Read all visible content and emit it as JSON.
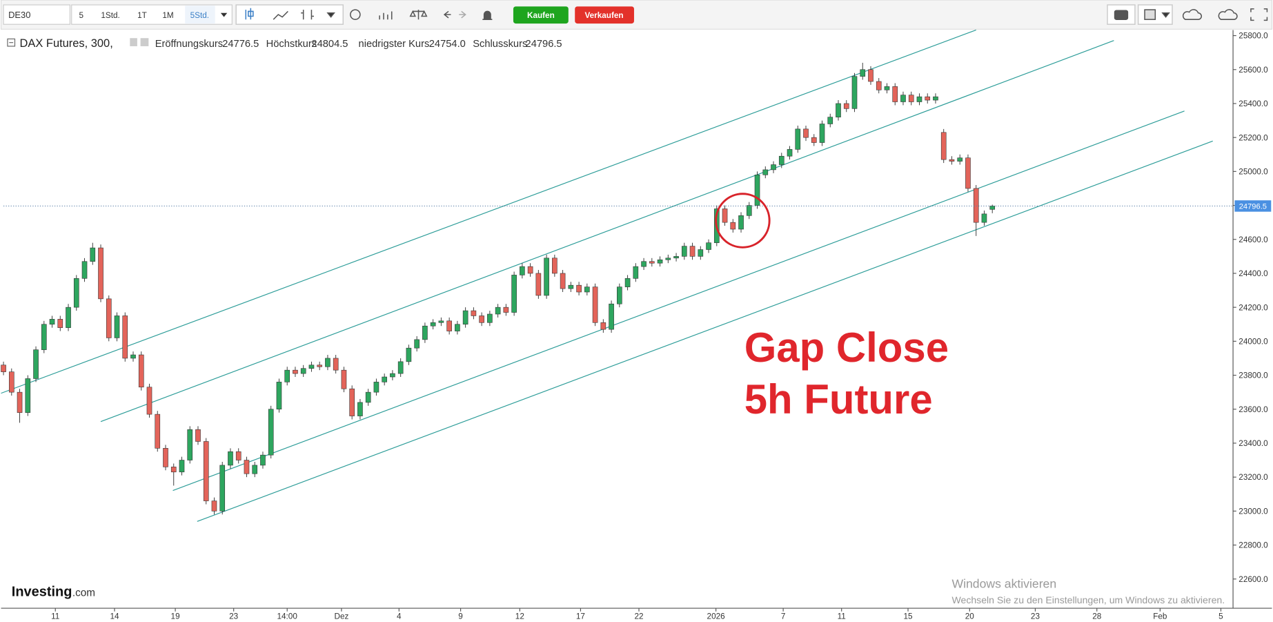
{
  "ui": {
    "symbol": "DE30",
    "intervals": [
      "5",
      "1Std.",
      "1T",
      "1M",
      "5Std."
    ],
    "buy": "Kaufen",
    "sell": "Verkaufen",
    "logo": "Investing",
    "logo_suffix": ".com",
    "watermark_title": "Windows aktivieren",
    "watermark_text": "Wechseln Sie zu den Einstellungen, um Windows zu aktivieren."
  },
  "chart_data": {
    "type": "candlestick",
    "title": "DAX Futures, 300,",
    "ohlc_header": [
      {
        "name": "Eröffnungskurs",
        "value": 24776.5
      },
      {
        "name": "Höchstkurs",
        "value": 24804.5
      },
      {
        "name": "niedrigster Kurs",
        "value": 24754,
        "label": "24754.0"
      },
      {
        "name": "Schlusskurs",
        "value": 24796.5
      }
    ],
    "annotations": [
      "Gap Close",
      "5h Future"
    ],
    "up_color": "#2ea65f",
    "down_color": "#e3645a",
    "trend_color": "#2b9c98",
    "x": [
      0,
      1,
      2,
      3,
      4,
      5,
      6,
      7,
      8,
      9,
      10,
      11,
      12,
      13,
      14,
      15,
      16,
      17,
      18,
      19,
      20,
      21,
      22,
      23,
      24,
      25,
      26,
      27,
      28,
      29,
      30,
      31,
      32,
      33,
      34,
      35,
      36,
      37,
      38,
      39,
      40,
      41,
      42,
      43,
      44,
      45,
      46,
      47,
      48,
      49,
      50,
      51,
      52,
      53,
      54,
      55,
      56,
      57,
      58,
      59,
      60,
      61,
      62,
      63,
      64,
      65,
      66,
      67,
      68,
      69,
      70,
      71,
      72,
      73,
      74,
      75,
      76,
      77,
      78,
      79,
      80,
      81,
      82,
      83,
      84,
      85,
      86,
      87,
      88,
      89,
      90,
      91,
      92,
      93,
      94,
      95,
      96,
      97,
      98,
      99,
      100,
      101,
      102,
      103,
      104,
      105,
      106,
      107,
      108,
      109,
      110,
      111,
      112,
      113,
      114,
      115,
      116,
      117,
      118,
      119,
      120,
      121,
      122
    ],
    "open": [
      23860,
      23820,
      23700,
      23580,
      23780,
      23950,
      24100,
      24130,
      24080,
      24200,
      24370,
      24470,
      24550,
      24250,
      24020,
      24150,
      23900,
      23920,
      23730,
      23570,
      23370,
      23260,
      23230,
      23300,
      23480,
      23410,
      23060,
      23000,
      23270,
      23350,
      23300,
      23220,
      23270,
      23330,
      23600,
      23760,
      23830,
      23810,
      23840,
      23860,
      23850,
      23900,
      23830,
      23720,
      23560,
      23640,
      23700,
      23760,
      23790,
      23810,
      23880,
      23960,
      24010,
      24090,
      24110,
      24120,
      24060,
      24100,
      24180,
      24150,
      24110,
      24160,
      24200,
      24170,
      24390,
      24440,
      24400,
      24270,
      24490,
      24400,
      24310,
      24330,
      24290,
      24320,
      24110,
      24070,
      24220,
      24320,
      24370,
      24440,
      24470,
      24460,
      24480,
      24490,
      24500,
      24560,
      24500,
      24540,
      24580,
      24780,
      24700,
      24660,
      24740,
      24800,
      24980,
      25010,
      25040,
      25090,
      25130,
      25250,
      25200,
      25170,
      25280,
      25320,
      25400,
      25370,
      25560,
      25600,
      25530,
      25480,
      25500,
      25410,
      25450,
      25410,
      25440,
      25420,
      25230,
      25070,
      25060,
      25080,
      24900,
      24700,
      24776.5
    ],
    "high": [
      23880,
      23840,
      23720,
      23800,
      23970,
      24120,
      24150,
      24150,
      24220,
      24390,
      24490,
      24580,
      24570,
      24270,
      24170,
      24170,
      23940,
      23940,
      23750,
      23590,
      23390,
      23280,
      23320,
      23500,
      23500,
      23430,
      23080,
      23290,
      23370,
      23370,
      23320,
      23290,
      23350,
      23620,
      23780,
      23850,
      23850,
      23860,
      23880,
      23880,
      23920,
      23920,
      23850,
      23740,
      23660,
      23720,
      23780,
      23810,
      23830,
      23900,
      23980,
      24030,
      24110,
      24130,
      24140,
      24140,
      24120,
      24200,
      24200,
      24170,
      24180,
      24220,
      24220,
      24410,
      24460,
      24460,
      24420,
      24510,
      24510,
      24420,
      24350,
      24350,
      24340,
      24340,
      24130,
      24240,
      24340,
      24390,
      24460,
      24490,
      24490,
      24500,
      24510,
      24520,
      24580,
      24580,
      24560,
      24600,
      24800,
      24800,
      24720,
      24760,
      24820,
      25000,
      25030,
      25060,
      25110,
      25150,
      25270,
      25270,
      25220,
      25300,
      25340,
      25420,
      25420,
      25580,
      25640,
      25620,
      25550,
      25520,
      25520,
      25470,
      25470,
      25460,
      25460,
      25460,
      25250,
      25090,
      25100,
      25100,
      24920,
      24770,
      24804.5
    ],
    "low": [
      23800,
      23680,
      23520,
      23560,
      23760,
      23930,
      24080,
      24060,
      24060,
      24180,
      24350,
      24450,
      24230,
      24000,
      24000,
      23880,
      23880,
      23710,
      23550,
      23350,
      23240,
      23150,
      23210,
      23280,
      23390,
      23040,
      22980,
      22980,
      23250,
      23280,
      23200,
      23200,
      23250,
      23310,
      23580,
      23740,
      23790,
      23790,
      23820,
      23830,
      23830,
      23810,
      23700,
      23540,
      23540,
      23620,
      23680,
      23740,
      23770,
      23790,
      23860,
      23940,
      23990,
      24070,
      24090,
      24040,
      24040,
      24080,
      24130,
      24090,
      24090,
      24140,
      24150,
      24150,
      24370,
      24380,
      24250,
      24250,
      24380,
      24290,
      24290,
      24270,
      24270,
      24090,
      24050,
      24050,
      24200,
      24300,
      24350,
      24420,
      24440,
      24440,
      24460,
      24470,
      24480,
      24480,
      24480,
      24520,
      24560,
      24680,
      24640,
      24640,
      24720,
      24780,
      24960,
      24990,
      25020,
      25070,
      25110,
      25180,
      25150,
      25150,
      25260,
      25300,
      25350,
      25350,
      25540,
      25510,
      25460,
      25460,
      25390,
      25390,
      25390,
      25390,
      25400,
      25400,
      25050,
      25040,
      25040,
      24880,
      24620,
      24680,
      24754
    ],
    "close": [
      23820,
      23700,
      23580,
      23780,
      23950,
      24100,
      24130,
      24080,
      24200,
      24370,
      24470,
      24550,
      24250,
      24020,
      24150,
      23900,
      23920,
      23730,
      23570,
      23370,
      23260,
      23230,
      23300,
      23480,
      23410,
      23060,
      23000,
      23270,
      23350,
      23300,
      23220,
      23270,
      23330,
      23600,
      23760,
      23830,
      23810,
      23840,
      23860,
      23850,
      23900,
      23830,
      23720,
      23560,
      23640,
      23700,
      23760,
      23790,
      23810,
      23880,
      23960,
      24010,
      24090,
      24110,
      24120,
      24060,
      24100,
      24180,
      24150,
      24110,
      24160,
      24200,
      24170,
      24390,
      24440,
      24400,
      24270,
      24490,
      24400,
      24310,
      24330,
      24290,
      24320,
      24110,
      24070,
      24220,
      24320,
      24370,
      24440,
      24470,
      24460,
      24480,
      24490,
      24500,
      24560,
      24500,
      24540,
      24580,
      24780,
      24700,
      24660,
      24740,
      24800,
      24980,
      25010,
      25040,
      25090,
      25130,
      25250,
      25200,
      25170,
      25280,
      25320,
      25400,
      25370,
      25560,
      25600,
      25530,
      25480,
      25500,
      25410,
      25450,
      25410,
      25440,
      25420,
      25440,
      25070,
      25060,
      25080,
      24900,
      24700,
      24750,
      24796.5
    ],
    "last_price": 24796.5,
    "trendlines": [
      {
        "x": [
          -0.3,
          120
        ],
        "y": [
          23694,
          25833
        ]
      },
      {
        "x": [
          12,
          137
        ],
        "y": [
          23527,
          25771
        ]
      },
      {
        "x": [
          20.9,
          145.7
        ],
        "y": [
          23121,
          25356
        ]
      },
      {
        "x": [
          23.9,
          149.2
        ],
        "y": [
          22939,
          25179
        ]
      }
    ],
    "xlim": [
      0,
      151.7
    ],
    "ylim": [
      22428,
      25833
    ],
    "grid": false,
    "xticks": [
      {
        "value": 6.4,
        "label": "11"
      },
      {
        "value": 13.7,
        "label": "14"
      },
      {
        "value": 21.2,
        "label": "19"
      },
      {
        "value": 28.4,
        "label": "23"
      },
      {
        "value": 35,
        "label": "14:00"
      },
      {
        "value": 41.7,
        "label": "Dez"
      },
      {
        "value": 48.8,
        "label": "4"
      },
      {
        "value": 56.4,
        "label": "9"
      },
      {
        "value": 63.7,
        "label": "12"
      },
      {
        "value": 71.2,
        "label": "17"
      },
      {
        "value": 78.4,
        "label": "22"
      },
      {
        "value": 87.9,
        "label": "2026"
      },
      {
        "value": 96.2,
        "label": "7"
      },
      {
        "value": 103.4,
        "label": "11"
      },
      {
        "value": 111.6,
        "label": "15"
      },
      {
        "value": 119.2,
        "label": "20"
      },
      {
        "value": 127.3,
        "label": "23"
      },
      {
        "value": 134.9,
        "label": "28"
      },
      {
        "value": 142.7,
        "label": "Feb"
      },
      {
        "value": 150.2,
        "label": "5"
      }
    ],
    "yticks": [
      {
        "value": 22600,
        "label": "22600.0"
      },
      {
        "value": 22800,
        "label": "22800.0"
      },
      {
        "value": 23000,
        "label": "23000.0"
      },
      {
        "value": 23200,
        "label": "23200.0"
      },
      {
        "value": 23400,
        "label": "23400.0"
      },
      {
        "value": 23600,
        "label": "23600.0"
      },
      {
        "value": 23800,
        "label": "23800.0"
      },
      {
        "value": 24000,
        "label": "24000.0"
      },
      {
        "value": 24200,
        "label": "24200.0"
      },
      {
        "value": 24400,
        "label": "24400.0"
      },
      {
        "value": 24600,
        "label": "24600.0"
      },
      {
        "value": 24800,
        "label": "24800.0"
      },
      {
        "value": 25000,
        "label": "25000.0"
      },
      {
        "value": 25200,
        "label": "25200.0"
      },
      {
        "value": 25400,
        "label": "25400.0"
      },
      {
        "value": 25600,
        "label": "25600.0"
      },
      {
        "value": 25800,
        "label": "25800.0"
      }
    ]
  }
}
